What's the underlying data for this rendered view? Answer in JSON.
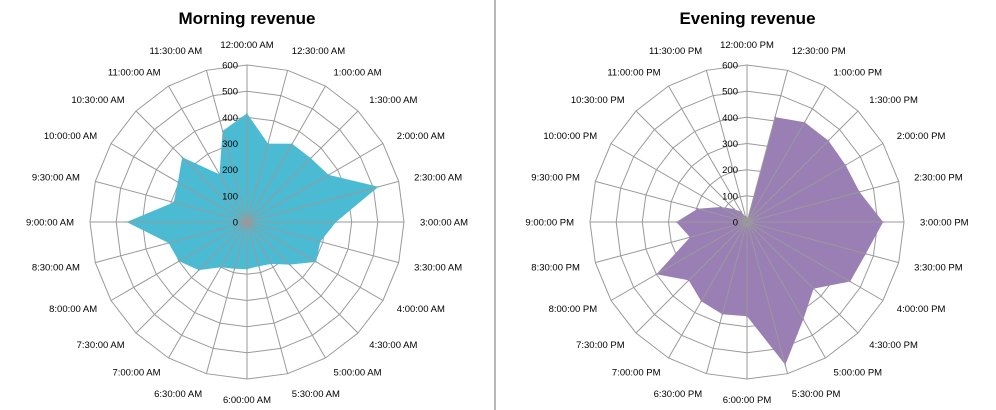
{
  "chart_data": [
    {
      "type": "radar",
      "title": "Morning revenue",
      "fill_color": "#4BBAD3",
      "rlim": [
        0,
        600
      ],
      "rticks": [
        "0",
        "100",
        "200",
        "300",
        "400",
        "500",
        "600"
      ],
      "categories": [
        "12:00:00 AM",
        "12:30:00 AM",
        "1:00:00 AM",
        "1:30:00 AM",
        "2:00:00 AM",
        "2:30:00 AM",
        "3:00:00 AM",
        "3:30:00 AM",
        "4:00:00 AM",
        "4:30:00 AM",
        "5:00:00 AM",
        "5:30:00 AM",
        "6:00:00 AM",
        "6:30:00 AM",
        "7:00:00 AM",
        "7:30:00 AM",
        "8:00:00 AM",
        "8:30:00 AM",
        "9:00:00 AM",
        "9:30:00 AM",
        "10:00:00 AM",
        "10:30:00 AM",
        "11:00:00 AM",
        "11:30:00 AM"
      ],
      "values": [
        415,
        310,
        345,
        345,
        360,
        520,
        340,
        290,
        305,
        230,
        185,
        175,
        180,
        185,
        200,
        260,
        300,
        310,
        460,
        290,
        305,
        350,
        210,
        360
      ]
    },
    {
      "type": "radar",
      "title": "Evening revenue",
      "fill_color": "#9A7FB5",
      "rlim": [
        0,
        600
      ],
      "rticks": [
        "0",
        "100",
        "200",
        "300",
        "400",
        "500",
        "600"
      ],
      "categories": [
        "12:00:00 PM",
        "12:30:00 PM",
        "1:00:00 PM",
        "1:30:00 PM",
        "2:00:00 PM",
        "2:30:00 PM",
        "3:00:00 PM",
        "3:30:00 PM",
        "4:00:00 PM",
        "4:30:00 PM",
        "5:00:00 PM",
        "5:30:00 PM",
        "6:00:00 PM",
        "6:30:00 PM",
        "7:00:00 PM",
        "7:30:00 PM",
        "8:00:00 PM",
        "8:30:00 PM",
        "9:00:00 PM",
        "9:30:00 PM",
        "10:00:00 PM",
        "10:30:00 PM",
        "11:00:00 PM",
        "11:30:00 PM"
      ],
      "values": [
        0,
        415,
        440,
        440,
        435,
        445,
        520,
        470,
        455,
        360,
        430,
        565,
        360,
        365,
        350,
        315,
        400,
        225,
        270,
        195,
        115,
        70,
        45,
        20
      ]
    }
  ]
}
